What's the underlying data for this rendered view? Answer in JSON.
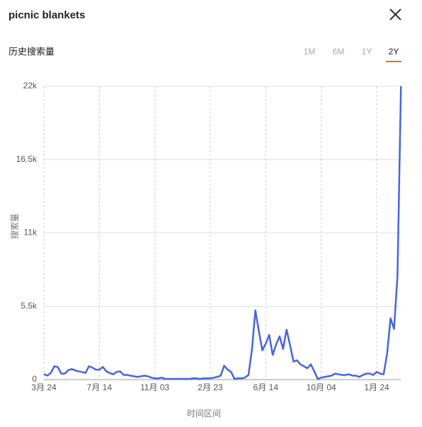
{
  "header": {
    "title": "picnic blankets"
  },
  "section_label": "历史搜索量",
  "tabs": [
    "1M",
    "6M",
    "1Y",
    "2Y"
  ],
  "active_tab": 3,
  "chart_data": {
    "type": "line",
    "y_label": "搜索量",
    "x_label": "时间区间",
    "color": "#4466dd",
    "grid": true,
    "categories": [
      "3月 24",
      null,
      null,
      null,
      null,
      null,
      null,
      null,
      null,
      null,
      null,
      null,
      null,
      null,
      null,
      null,
      "7月 14",
      null,
      null,
      null,
      null,
      null,
      null,
      null,
      null,
      null,
      null,
      null,
      null,
      null,
      null,
      null,
      "11月 03",
      null,
      null,
      null,
      null,
      null,
      null,
      null,
      null,
      null,
      null,
      null,
      null,
      null,
      null,
      null,
      "2月 23",
      null,
      null,
      null,
      null,
      null,
      null,
      null,
      null,
      null,
      null,
      null,
      null,
      null,
      null,
      null,
      "6月 14",
      null,
      null,
      null,
      null,
      null,
      null,
      null,
      null,
      null,
      null,
      null,
      null,
      null,
      null,
      null,
      "10月 04",
      null,
      null,
      null,
      null,
      null,
      null,
      null,
      null,
      null,
      null,
      null,
      null,
      null,
      null,
      null,
      "1月 24",
      null,
      null,
      null,
      null,
      null,
      null,
      null
    ],
    "values": [
      420,
      300,
      500,
      1000,
      950,
      450,
      450,
      700,
      800,
      700,
      620,
      580,
      500,
      1000,
      900,
      750,
      750,
      950,
      620,
      500,
      400,
      580,
      620,
      350,
      350,
      300,
      250,
      200,
      250,
      300,
      250,
      150,
      100,
      100,
      150,
      50,
      50,
      50,
      50,
      50,
      50,
      50,
      50,
      100,
      100,
      50,
      100,
      100,
      100,
      150,
      200,
      300,
      1050,
      750,
      580,
      50,
      100,
      100,
      150,
      350,
      2200,
      5200,
      3650,
      2200,
      2700,
      3350,
      1850,
      2650,
      3250,
      2300,
      3750,
      2600,
      1350,
      1450,
      1150,
      1000,
      850,
      1150,
      620,
      50,
      150,
      200,
      250,
      300,
      450,
      400,
      350,
      350,
      400,
      300,
      300,
      200,
      350,
      450,
      450,
      350,
      580,
      450,
      400,
      1950,
      4600,
      3800,
      7800,
      22000
    ],
    "ylim": [
      0,
      22000
    ],
    "yticks": [
      0,
      {
        "value": 5500,
        "label": "5.5k"
      },
      {
        "value": 11000,
        "label": "11k"
      },
      {
        "value": 16500,
        "label": "16.5k"
      },
      {
        "value": 22000,
        "label": "22k"
      }
    ]
  }
}
